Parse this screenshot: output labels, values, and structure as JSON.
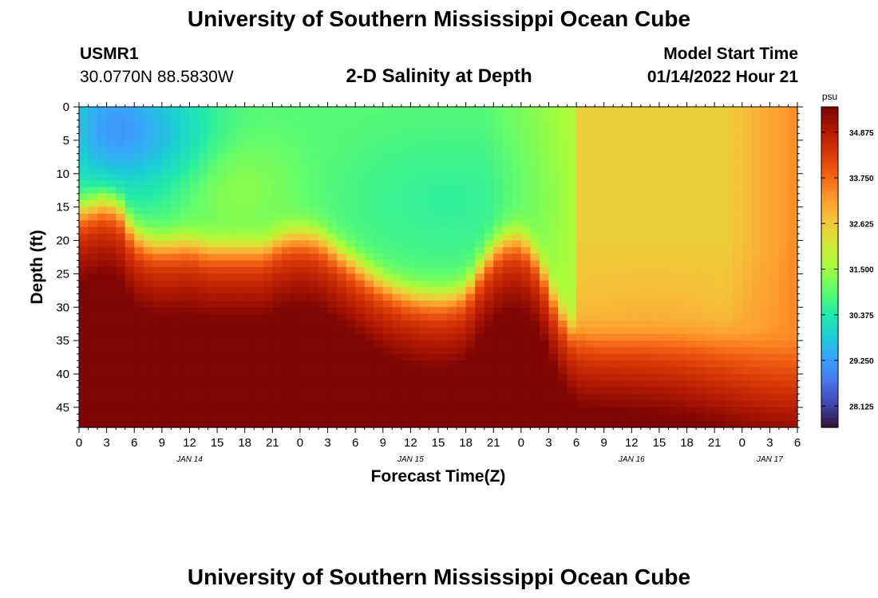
{
  "header": {
    "title": "University of Southern Mississippi Ocean Cube",
    "station_id": "USMR1",
    "coordinates": "30.0770N  88.5830W",
    "subtitle": "2-D Salinity at Depth",
    "model_start_label": "Model Start Time",
    "model_start_value": "01/14/2022 Hour 21"
  },
  "footer": {
    "title": "University of Southern Mississippi Ocean Cube"
  },
  "chart_data": {
    "type": "heatmap",
    "title": "2-D Salinity at Depth",
    "xlabel": "Forecast Time(Z)",
    "ylabel": "Depth (ft)",
    "x_ticks": [
      "0",
      "3",
      "6",
      "9",
      "12",
      "15",
      "18",
      "21",
      "0",
      "3",
      "6",
      "9",
      "12",
      "15",
      "18",
      "21",
      "0",
      "3",
      "6",
      "9",
      "12",
      "15",
      "18",
      "21",
      "0",
      "3",
      "6"
    ],
    "date_labels": [
      {
        "label": "JAN 14",
        "tick_index": 4
      },
      {
        "label": "JAN 15",
        "tick_index": 12
      },
      {
        "label": "JAN 16",
        "tick_index": 20
      },
      {
        "label": "JAN 17",
        "tick_index": 25
      }
    ],
    "x_range_hours": [
      0,
      78
    ],
    "y_ticks": [
      0,
      5,
      10,
      15,
      20,
      25,
      30,
      35,
      40,
      45
    ],
    "y_range": [
      0,
      48
    ],
    "colorbar": {
      "unit": "psu",
      "range": [
        27.6,
        35.5
      ],
      "ticks": [
        "34.875",
        "33.750",
        "32.625",
        "31.500",
        "30.375",
        "29.250",
        "28.125"
      ],
      "colors": [
        "#30123b",
        "#4145ab",
        "#4675ed",
        "#39a2fc",
        "#1bcfd4",
        "#24eca6",
        "#61fc6c",
        "#a4fc3b",
        "#d1e834",
        "#f3c63a",
        "#fe9b2d",
        "#f36315",
        "#d93806",
        "#b11901",
        "#7a0402"
      ]
    },
    "halocline": {
      "time_hours": [
        0,
        1.5,
        3,
        4.5,
        6,
        8,
        10,
        12,
        14,
        16,
        18,
        20,
        22,
        24,
        26,
        28,
        30,
        32,
        34,
        36,
        38,
        40,
        42,
        44,
        46,
        48,
        50,
        52,
        54,
        56,
        58,
        60,
        62,
        64,
        66,
        68,
        70,
        72,
        74,
        76,
        78
      ],
      "depth_ft": [
        15.5,
        14.8,
        14.2,
        15.5,
        19,
        20.5,
        20.5,
        20.2,
        21,
        21,
        21,
        21,
        19.5,
        19,
        19.5,
        21.5,
        23.5,
        25.5,
        27,
        28,
        28.5,
        28.5,
        27.5,
        23,
        20,
        19.5,
        23,
        30,
        34,
        34.5,
        34.5,
        34.5,
        34.5,
        34.5,
        34.5,
        34.5,
        34.5,
        34.5,
        34.5,
        34.5,
        34.5
      ]
    },
    "notes": "Fresher water (~29-31.5 psu) above the halocline until about hour 54, then 32-33.5 psu; saltier water (~33.5-35.5 psu) below, maximum near the bottom around hours 3 and 18."
  }
}
